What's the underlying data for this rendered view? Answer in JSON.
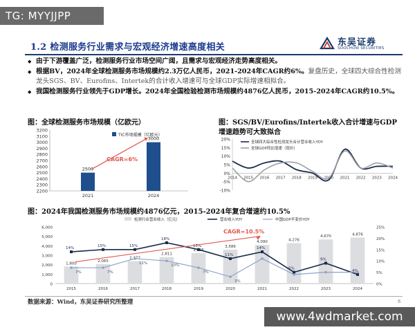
{
  "tag": "TG: MYYJJPP",
  "logo": {
    "cn": "东吴证券",
    "en": "SOOCHOW SECURITIES"
  },
  "title": "1.2 检测服务行业需求与宏观经济增速高度相关",
  "bullets": [
    {
      "bold": "由于下游覆盖广泛，检测服务行业市场空间广阔，且需求与宏观经济走势高度相关。",
      "rest": ""
    },
    {
      "bold": "根据BV，2024年全球检测服务市场规模约2.3万亿人民币，2021-2024年CAGR约6%。",
      "rest": "复盘历史，全球四大综合性检测龙头SGS、BV、Eurofins、Intertek的合计收入增速可与全球GDP实际增速相拟合。"
    },
    {
      "bold": "我国检测服务行业领先于GDP增长。2024年全国检验检测市场规模约4876亿人民币，2015-2024年CAGR约10.5%。",
      "rest": ""
    }
  ],
  "chart1": {
    "heading": "图：全球检测服务市场规模（亿欧元）",
    "legend": "TIC市场规模（亿欧元）",
    "cagr": "CAGR=6%",
    "chart_data": {
      "type": "bar",
      "categories": [
        "2021",
        "2024"
      ],
      "values": [
        2500,
        3000
      ],
      "ylim": [
        2200,
        3200
      ],
      "yticks": [
        "3200",
        "3100",
        "3000",
        "2900",
        "2800",
        "2700",
        "2600",
        "2500",
        "2400",
        "2300",
        "2200"
      ],
      "color": "#1f4e8c"
    }
  },
  "chart2": {
    "heading1": "图：SGS/BV/Eurofins/Intertek收入合计增速与GDP",
    "heading2": "增速趋势可大致拟合",
    "legend1": "全球四大综合性检测龙头合计营业收入YOY",
    "legend2": "全球GDP同比增速（现价）",
    "chart_data": {
      "type": "line",
      "x": [
        "2014",
        "2015",
        "2016",
        "2017",
        "2018",
        "2019",
        "2020",
        "2021",
        "2022",
        "2023",
        "2024"
      ],
      "yticks": [
        "20%",
        "15%",
        "10%",
        "5%",
        "0%",
        "-5%",
        "-10%"
      ],
      "ylim": [
        -10,
        20
      ],
      "series": [
        {
          "name": "全球四大综合性检测龙头合计营业收入YOY",
          "color": "#1a2a4a",
          "values": [
            7,
            3,
            6,
            7,
            2,
            0,
            -4,
            14,
            3,
            4,
            4
          ]
        },
        {
          "name": "全球GDP同比增速（现价）",
          "color": "#9aa0a6",
          "values": [
            3,
            -5,
            2,
            6,
            6,
            1,
            -3,
            13,
            3,
            6,
            3
          ]
        }
      ]
    }
  },
  "chart3": {
    "heading": "图：2024年我国检测服务市场规模约4876亿元，2015-2024年复合增速约10.5%",
    "legend1": "检测行业营业收入（亿元）",
    "legend2": "营业收入YOY",
    "legend3": "中国GDP不变价YOY",
    "cagr": "CAGR=10.5%",
    "chart_data": {
      "type": "bar",
      "categories": [
        "2015",
        "2016",
        "2017",
        "2018",
        "2019",
        "2020",
        "2021",
        "2022",
        "2023",
        "2024"
      ],
      "values": [
        1800,
        2065,
        2377,
        2811,
        3225,
        3586,
        4090,
        4276,
        4670,
        4876
      ],
      "value_labels": [
        "1,800",
        "2,065",
        "2,377",
        "2,811",
        "3,225",
        "3,586",
        "4,090",
        "4,276",
        "4,670",
        "4,876"
      ],
      "ylim": [
        0,
        6000
      ],
      "yticks": [
        "6,000",
        "5,000",
        "4,000",
        "3,000",
        "2,000",
        "1,000",
        "0"
      ],
      "y2ticks": [
        "25%",
        "20%",
        "15%",
        "10%",
        "5%",
        "0%"
      ],
      "y2lim": [
        0,
        25
      ],
      "series": [
        {
          "name": "营业收入YOY",
          "color": "#1a2a4a",
          "values": [
            14,
            15,
            15,
            18,
            15,
            11,
            14,
            5,
            9,
            4
          ],
          "labels": [
            "14%",
            "15%",
            "15%",
            "18%",
            "15%",
            "11%",
            "14%",
            "5%",
            "9%",
            "4%"
          ]
        },
        {
          "name": "中国GDP不变价YOY",
          "color": "#8fa3c8",
          "values": [
            7,
            7,
            11,
            10,
            7,
            3,
            11,
            4,
            5,
            5
          ],
          "labels": [
            "7%",
            "7%",
            "11%",
            "10%",
            "7%",
            "3%",
            "",
            "",
            "",
            ""
          ]
        }
      ]
    }
  },
  "source": "数据来源：Wind，东吴证券研究所整理",
  "page": "6",
  "watermark": "www.4wdmarket.com"
}
